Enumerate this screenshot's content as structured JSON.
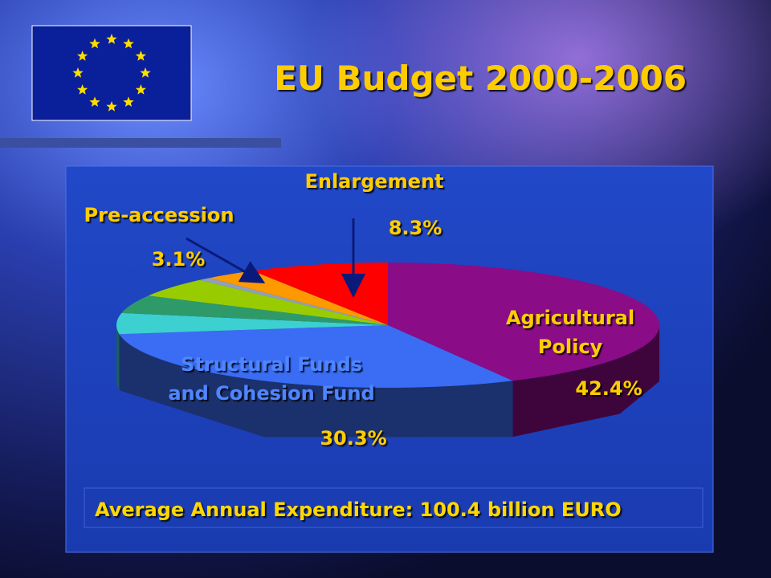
{
  "slide": {
    "title": "EU Budget 2000-2006"
  },
  "chart_data": {
    "type": "pie",
    "start": "top",
    "direction": "clockwise",
    "categories": [
      "Agricultural\nPolicy",
      "Structural Funds\nand Cohesion Fund",
      null,
      null,
      null,
      null,
      "Pre-accession",
      "Enlargement"
    ],
    "values": [
      42.4,
      30.3,
      5.4,
      4.7,
      5.0,
      0.8,
      3.1,
      8.3
    ],
    "value_labels": [
      "42.4%",
      "30.3%",
      null,
      null,
      null,
      null,
      "3.1%",
      "8.3%"
    ],
    "colors": [
      "#8a0c86",
      "#3a6cf4",
      "#3cd0d0",
      "#2e9a6a",
      "#99cc00",
      "#8fa0b8",
      "#ff9900",
      "#ff0000"
    ],
    "footer": "Average Annual Expenditure: 100.4 billion EURO"
  }
}
